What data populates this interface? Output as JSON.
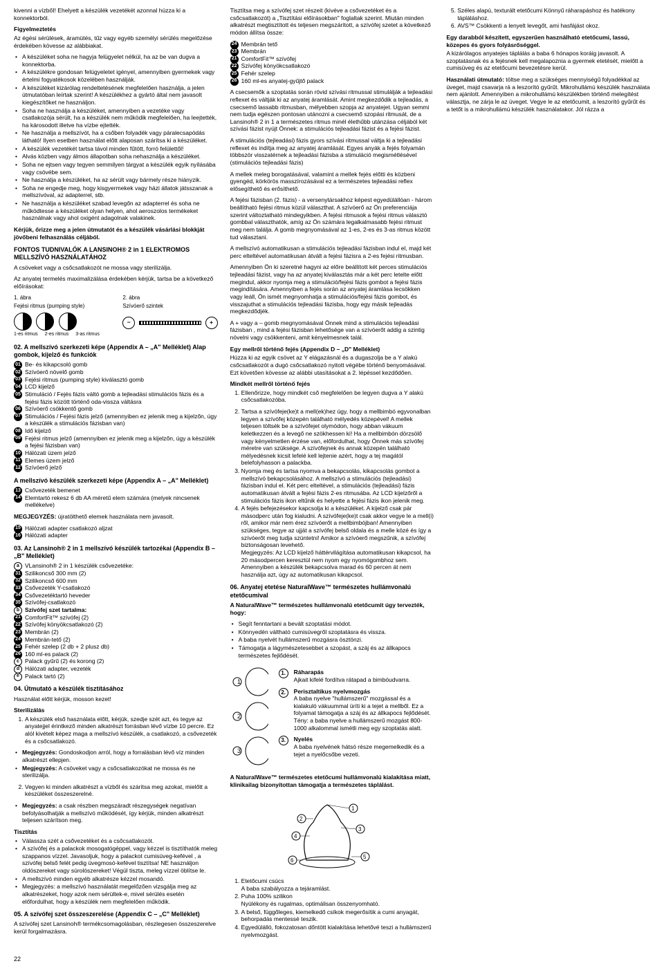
{
  "page_number": "22",
  "col1": {
    "lead": "kivenni a vízbőI! Ehelyett a készülék vezetékét azonnal húzza ki a konnektorból.",
    "warn_title": "Figyelmeztetés",
    "warn_intro": "Az égési sérülések, áramütés, tűz vagy egyéb személyi sérülés megelőzése érdekében kövesse az alábbiakat.",
    "warn_items": [
      "A készüléket soha ne hagyja felügyelet nélkül, ha az be van dugva a konnektorba.",
      "A készülékre gondosan felügyeletet igényel, amennyiben gyermekek vagy értelmi fogyatékosok közelében használják.",
      "A készüléket kizárólag rendeltetésének megfelelően használja, a jelen útmutatóban leírtak szerint! A készülékhez a gyártó által nem javasolt kiegészítőket ne használjon.",
      "Soha ne használja a készüléket, amennyiben a vezetéke vagy csatlakozója sérült, ha a készülék nem működik megfelelően, ha leejtették, ha károsodott illetve ha vízbe ejtették.",
      "Ne használja a mellszívót, ha a csőben folyadék vagy páralecsapódás látható! Ilyen esetben használat előtt alaposan szárítsa ki a készüléket.",
      "A készülék vezetékét tartsa távol minden fűtött, forró felülettől!",
      "Alvás közben vagy álmos állapotban soha nehasználja a készüléket.",
      "Soha ne ejtsen vagy tegyen semmilyen tárgyat a készülék egyik nyílásába vagy csövébe sem.",
      "Ne használja a készüléket, ha az sérült vagy bármely része hiányzik.",
      "Soha ne engedje meg, hogy kisgyermekek vagy házi állatok játsszanak a mellszívóval, az adapterrel, stb.",
      "Ne használja a készüléket szabad levegőn az adapterrel és soha ne működtesse a készüléket olyan helyen, ahol aeroszolos termékeket használnak vagy ahol oxigént adagolnak valakinek."
    ],
    "keep": "Kérjük, őrizze meg a jelen útmutatót és a készülék vásárlási blokkját jövőbeni felhasználás céljából.",
    "important_title": "FONTOS TUDNIVALÓK A LANSINOH® 2 in 1 ELEKTROMOS MELLSZÍVÓ HASZNÁLATÁHOZ",
    "important_1": "A csöveket vagy a csőcsatlakozót ne mossa vagy sterilizálja.",
    "important_2": "Az anyatej termelés maximalizálása érdekében kérjük, tartsa be a következő előírásokat:",
    "fig1_label": "1. ábra",
    "fig1_caption": "Fejési ritmus (pumping style)",
    "fig2_label": "2. ábra",
    "fig2_caption": "Szívóerő szintek",
    "rhythm_labels": [
      "1-es ritmus",
      "2-es ritmus",
      "3-as ritmus"
    ],
    "sec02_title": "02. A mellszívó szerkezeti képe (Appendix A – „A\" Melléklet) Alap gombok, kijelző és funkciók",
    "sec02_items": [
      {
        "n": "01",
        "t": "Be- és kikapcsoló gomb"
      },
      {
        "n": "02",
        "t": "Szívóerő növelő gomb"
      },
      {
        "n": "03",
        "t": "Fejési ritmus (pumping style) kiválasztó gomb"
      },
      {
        "n": "04",
        "t": "LCD kijelző"
      },
      {
        "n": "05",
        "t": "Stimuláció / Fejés fázis váltó gomb a tejleadási stimulációs fázis és a fejési fázis között történő oda-vissza váltásra"
      },
      {
        "n": "06",
        "t": "Szívóerő csökkentő gomb"
      },
      {
        "n": "07",
        "t": "Stimulációs / Fejési fázis jelző (amennyiben ez jelenik meg a kijelzőn, úgy a készülék a stimulációs fázisban van)"
      },
      {
        "n": "08",
        "t": "Idő kijelző"
      },
      {
        "n": "09",
        "t": "Fejési ritmus jelző (amennyiben ez jelenik meg a kijelzőn, úgy a készülék a fejési fázisban van)"
      },
      {
        "n": "10",
        "t": "Hálózati üzem jelző"
      },
      {
        "n": "11",
        "t": "Elemes üzem jelző"
      },
      {
        "n": "12",
        "t": "Szívóerő jelző"
      }
    ],
    "sec02b_title": "A mellszívó készülék szerkezeti képe (Appendix A – „A\" Melléklet)",
    "sec02b_items": [
      {
        "n": "13",
        "t": "Csővezeték bemenet"
      },
      {
        "n": "14",
        "t": "Elemtartó rekesz 6 db AA méretű elem számára (melyek nincsenek mellékelve)"
      }
    ],
    "note_label": "MEGJEGYZÉS:",
    "note_text": "újratölthető elemek használata nem javasolt.",
    "sec02c_items": [
      {
        "n": "15",
        "t": "Hálózati adapter csatlakozó aljzat"
      },
      {
        "n": "16",
        "t": "Hálózati adapter"
      }
    ],
    "sec03_title": "03. Az Lansinoh® 2 in 1 mellszívó készülék tartozékai (Appendix B – „B\" Melléklet)",
    "sec03_items": [
      {
        "n": "a",
        "t": "VLansinoh® 2 in 1 készülék csővezetéke:"
      },
      {
        "n": "31",
        "t": "Szilikoncső 300 mm (2)"
      },
      {
        "n": "32",
        "t": "Szilikoncső 600 mm"
      },
      {
        "n": "33",
        "t": "Csővezeték Y-csatlakozó"
      },
      {
        "n": "34",
        "t": "Csővezetéktartó heveder"
      },
      {
        "n": "35",
        "t": "Szívófej-csatlakozó"
      },
      {
        "n": "b",
        "t": "Szívófej szet tartalma:"
      },
      {
        "n": "21",
        "t": "ComfortFit™ szívófej (2)"
      },
      {
        "n": "22",
        "t": "Szívófej könyökcsatlakozó (2)"
      },
      {
        "n": "23",
        "t": "Membrán (2)"
      },
      {
        "n": "24",
        "t": "Membrán-tető (2)"
      },
      {
        "n": "25",
        "t": "Fehér szelep (2 db + 2 plusz db)"
      },
      {
        "n": "26",
        "t": "160 ml-es palack (2)"
      },
      {
        "n": "c",
        "t": "Palack gyűrű (2) és korong (2)"
      },
      {
        "n": "d",
        "t": "Hálózati adapter, vezeték"
      },
      {
        "n": "e",
        "t": "Palack tartó (2)"
      }
    ]
  },
  "col2": {
    "sec04_title": "04. Útmutató a készülék tisztításához",
    "sec04_lead": "Használat előtt kérjük, mosson kezet!",
    "steril_title": "Sterilizálás",
    "steril_items": [
      "A készülék első használata előtt, kérjük, szedje szét azt, és tegye az anyatejjel érintkező minden alkatrészt forrásban lévő vízbe 10 percre. Ez alól kivételt képez maga a mellszívó készülék, a csatlakozó, a csővezeték és a csőcsatlakozó."
    ],
    "steril_bullets": [
      "Megjegyzés: Gondoskodjon arról, hogy a forralásban lévő víz minden alkatrészt ellepjen.",
      "Megjegyzés: A csöveket vagy a csőcsatlakozókat ne mossa és ne sterilizálja."
    ],
    "steril_items2": [
      "Vegyen ki minden alkatrészt a vízből és szárítsa meg azokat, mielőtt a készüléket összeszerelné."
    ],
    "steril_bullets2": [
      "Megjegyzés: a csak részben megszáradt részegységek negatívan befolyásolhatják a mellszívó működését, így kérjük, minden alkatrészt teljesen szárítson meg."
    ],
    "clean_title": "Tisztítás",
    "clean_bullets": [
      "Válassza szét a csővezetéket és a csőcsatlakozót.",
      "A szívófej és a palackok mosogatógéppel, vagy kézzel is tisztíthatók meleg szappanos vízzel. Javasoljuk, hogy a palackot cumisüveg-kefével , a szívófej belső felét pedig üvegmosó-kefével tisztítsa! NE használjon oldószereket vagy súrolószereket! Végül tiszta, meleg vízzel öblítse le.",
      "A mellszívó minden egyéb alkatrésze kézzel mosandó.",
      "Megjegyzés: a mellszívó használatát megelőzően vizsgálja meg az alkatrészeket, hogy azok nem sérültek-e, mivel sérülés esetén előfordulhat, hogy a készülék nem megfelelően működik."
    ],
    "sec05_title": "05. A szívófej szet összeszerelése (Appendix C – „C\" Melléklet)",
    "sec05_p1": "A szívófej szet Lansinoh® termékcsomagolásban, részlegesen összeszerelve kerül forgalmazásra.",
    "sec05_p2": "Tisztítsa meg a szívófej szet részeit (kivéve a csővezetéket és a csőcsatlakozót) a „Tisztítási előírásokban\" foglaltak szerint. Miután minden alkatrészt megtisztított és teljesen megszárított, a szívófej szetet a következő módon állítsa össze:",
    "sec05_parts": [
      {
        "n": "24",
        "t": "Membrán tető"
      },
      {
        "n": "23",
        "t": "Membrán"
      },
      {
        "n": "21",
        "t": "ComfortFit™ szívófej"
      },
      {
        "n": "22",
        "t": "Szívófej könyökcsatlakozó"
      },
      {
        "n": "25",
        "t": "Fehér szelep"
      },
      {
        "n": "26",
        "t": "160 ml-es anyatej-gyűjtő palack"
      }
    ],
    "sec05_p3": "A csecsemők a szoptatás során rövid szívási ritmussal stimulálják a tejleadási reflexet és váltják ki az anyatej áramlását. Amint megkezdődik a tejleadás, a csecsemő lassabb ritmusban, mélyebben szopja az anyatejet. Ugyan semmi nem tudja egészen pontosan utánozni a csecsemő szopási ritmusát, de a Lansinoh® 2 in 1 a természetes ritmus minél élethűbb utánzása céljából két szívási fázist nyújt Önnek: a stimulációs tejleadási fázist és a fejési fázist.",
    "sec05_p4": "A stimulációs (tejleadási) fázis gyors szívási ritmussal váltja ki a tejleadási reflexet és indítja meg az anyatej áramlását. Egyes anyák a fejés folyamán többször visszatérnek a tejleadási fázisba a stimuláció megismétlésével (stimulációs tejleadási fázis)",
    "sec05_p5": "A mellek meleg borogatásával, valamint a mellek fejés előtti és közbeni gyengéd, körkörös masszírozásával ez a természetes tejleadási reflex elősegíthető és erősíthető.",
    "sec05_p6": "A fejési fázisban (2. fázis) - a versenytársakhoz képest egyedülállóan - három beállítható fejési ritmus közül választhat. A szívóerő az Ön preferenciája szerint változtatható mindegyikben. A fejési ritmusok a fejési ritmus választó gombbal választhatók, amíg az Ön számára legalkalmasabb fejési ritmust meg nem találja. A gomb megnyomásával az 1-es, 2-es és 3-as ritmus között tud választani.",
    "sec05_p7": "A mellszívó automatikusan a stimulációs tejleadási fázisban indul el, majd két perc elteltével automatikusan átvált a fejési fázisra a 2-es fejési ritmusban.",
    "sec05_p8": "Amennyiben Ön ki szeretné hagyni az előre beállított két perces stimulációs tejleadási fázist, vagy ha az anyatej kiválasztás már a két perc letelte előtt megindul, akkor nyomja meg a stimuláció/fejési fázis gombot a fejési fázis megindítására. Amennyiben a fejés során az anyatej áramlása lecsökken vagy leáll, Ön ismét megnyomhatja a stimulációs/fejési fázis gombot, és visszajuthat a stimulációs tejleadási fázisba, hogy egy másik tejleadás megkezdődjék.",
    "sec05_p9": "A + vagy a – gomb megnyomásával Önnek mind a stimulációs tejleadási fázisban , mind a fejési fázisban lehetősége van a szívóerőt addig a szintig növelni vagy csökkenteni, amit kényelmesnek talál.",
    "single_title": "Egy mellről történő fejés (Appendix D – „D\" Melléklet)",
    "single_p": "Húzza ki az egyik csövet az Y elágazásnál és a dugaszolja be a Y alakú csőcsatlakozót a dugó csőcsatlakozó nyitott végébe történő benyomásával. Ezt követően kövesse az alábbi utasításokat a 2. lépéssel kezdődően.",
    "both_title": "Mindkét mellről történő fejés",
    "both_items": [
      "Ellenőrizze, hogy mindkét cső megfelelően be legyen dugva a Y alakú csőcsatlakozóba."
    ]
  },
  "col3": {
    "steps": [
      "Tartsa a szívófeje(ke)t a mell(ek)hez úgy, hogy a mellbimbó egyvonalban legyen a szívófej közepén található mélyedés közepével! A mellek teljesen töltsék be a szívófejet olymódon, hogy abban vákuum keletkezzen és a levegő ne szökhessen ki! Ha a mellbimbón dörzsölő vagy kényelmetlen érzése van, előfordulhat, hogy Önnek más szívófej méretre van szüksége. A szívófejnek és annak közepén található mélyedésnek kicsit lefelé kell lejtenie azért, hogy a tej magától belefolyhasson a palackba.",
      "Nyomja meg és tartsa nyomva a bekapcsolás, kikapcsolás gombot a mellszívó bekapcsolásához. A mellszívó a stimulációs (tejleadási) fázisban indul el. Két perc elteltével, a stimulációs (tejleadási) fázis automatikusan átvált a fejési fázis 2-es ritmusába. Az LCD kijelzőről a stimulációs fázis ikon eltűnik és helyette a fejési fázis ikon jelenik meg.",
      "A fejés befejezésekor kapcsolja ki a készüléket. A kijelző csak pár másodperc után fog kialudni. A szívófeje(ke)t csak akkor vegye le a mell(i) ről, amikor már nem érez szívóerőt a mellbimbójban! Amennyiben szükséges, tegye az ujját a szívófej belső oldala és a melle közé és így a szívóerőt meg tudja szüntetni! Amikor a szívóerő megszűnik, a szívófej biztonságosan levehető.\nMegjegyzés: Az LCD kijelző háttérvilágítása automatikusan kikapcsol, ha 20 másodpercen keresztül nem nyom egy nyomógombhoz sem. Amennyiben a készülék bekapcsolva marad és 60 percen át nem használja azt, úgy az automatikusan kikapcsol."
    ],
    "sec06_title": "06. Anyatej etetése NaturalWave™ természetes hullámvonalú etetőcumival",
    "sec06_sub": "A NaturalWave™ természetes hullámvonalú etetőcumit úgy tervezték, hogy:",
    "sec06_bullets": [
      "Segít fenntartani a bevált szoptatási módot.",
      "Könnyedén váltható cumisüvegről szoptatásra és vissza.",
      "A baba nyelvét hullámszerű mozgásra ösztönzi.",
      "Támogatja a lágymészetesebbet a szopást, a száj és az állkapocs természetes fejlődését."
    ],
    "teat_items": [
      {
        "n": "1",
        "t": "Ráharapás",
        "d": "Ajkait kifelé fordítva rátapad a bimbóudvarra."
      },
      {
        "n": "2",
        "t": "Perisztaltikus nyelvmozgás",
        "d": "A baba nyelve \"hullámszerű\" mozgással és a kialakuló vákuummal üríti ki a tejet a mellből. Ez a folyamat támogatja a száj és az állkapocs fejlődését.\nTény: a baba nyelve a hullámszerű mozgást 800-1000 alkalommal ismétli meg egy szoptatás alatt."
      },
      {
        "n": "3",
        "t": "Nyelés",
        "d": "A baba nyelvének hátsó része megemelkedik és a tejet a nyelőcsőbe vezeti."
      }
    ],
    "sec06_p1": "A NaturalWave™ természetes etetőcumi hullámvonalú kialakítása miatt, klinikailag bizonyítottan támogatja a természetes táplálást.",
    "nipple_points": [
      "Etetőcumi csúcs\nA baba szabályozza a tejáramlást.",
      "Puha 100% szilikon\nNyúlékony és rugalmas, optimálisan összenyomható.",
      "A belső, függőleges, kiemelkedő csíkok megerősítik a cumi anyagát, behorpadás mentessé teszik.",
      "Egyedülálló, fokozatosan dőntött kialakítása lehetővé teszi a hullámszerű nyelvmozgást.",
      "Széles alapú, texturált etetőcumi Könnyű ráharapáshoz és hatékony tápláláshoz.",
      "AVS™ Csökkenti a lenyelt levegőt, ami hasfájást okoz."
    ],
    "sec06b_title": "Egy darabból készített, egyszerűen használható etetőcumi, lassú, közepes és gyors folyásrőséggel.",
    "sec06b_p": "A kizárólagos anyatejes táplálás a baba 6 hónapos koráig javasolt. A szoptatásnak és a fejésnek kell megalapoznia a gyermek etetését, mielőtt a cumisüveg és az etetőcumi bevezetésre kerül.",
    "usage_title": "Használati útmutató:",
    "usage_p": "töltse meg a szükséges mennyiségű folyadékkal az üveget, majd csavarja rá a leszorító gyűrűt. Mikrohullámú készülék használata nem ajánlott. Amennyiben a mikrohullámú készülékben történő melegítést választja, ne zárja le az üveget. Vegye le az etetőcumit, a leszorító gyűrűt és a tetőt is a mikrohullámú készülék használatakor. Jól rázza a"
  }
}
